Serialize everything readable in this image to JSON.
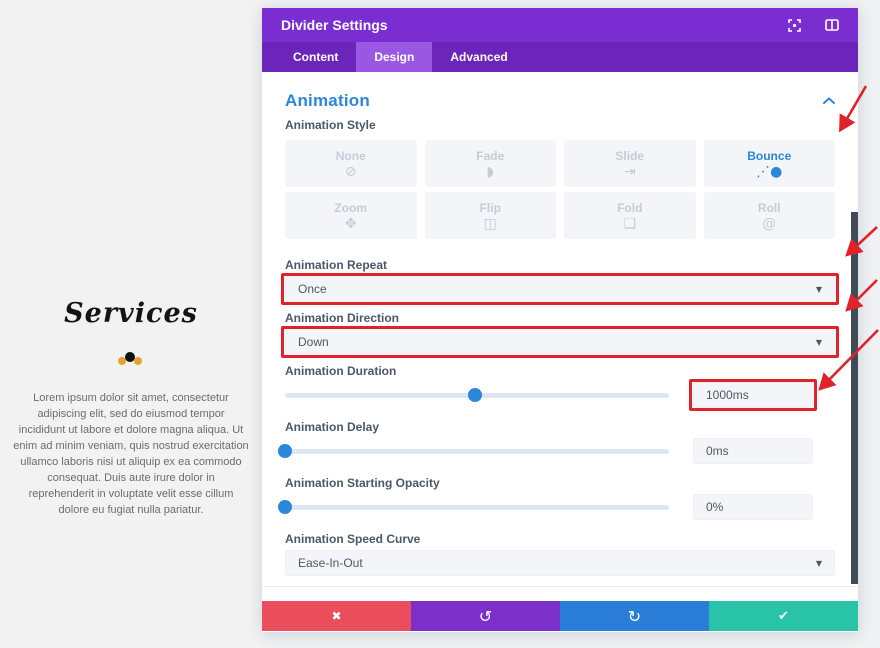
{
  "colors": {
    "header_purple": "#7a2dd1",
    "tabbar_purple": "#6c25ba",
    "active_tab_purple": "#9a58e2",
    "accent_blue": "#2b87da",
    "annotation_red": "#e0222a",
    "button_red": "#ea4d5c",
    "button_purple": "#7d2fc9",
    "button_blue": "#2b7ed8",
    "button_green": "#29c3a8"
  },
  "left_panel": {
    "heading": "Services",
    "paragraph": "Lorem ipsum dolor sit amet, consectetur adipiscing elit, sed do eiusmod tempor incididunt ut labore et dolore magna aliqua. Ut enim ad minim veniam, quis nostrud exercitation ullamco laboris nisi ut aliquip ex ea commodo consequat. Duis aute irure dolor in reprehenderit in voluptate velit esse cillum dolore eu fugiat nulla pariatur."
  },
  "modal": {
    "title": "Divider Settings",
    "tabs": [
      {
        "label": "Content"
      },
      {
        "label": "Design"
      },
      {
        "label": "Advanced"
      }
    ],
    "section_title": "Animation",
    "animation_style": {
      "label": "Animation Style",
      "selected": "Bounce",
      "options": [
        {
          "label": "None",
          "glyph": "⊘"
        },
        {
          "label": "Fade",
          "glyph": "◗"
        },
        {
          "label": "Slide",
          "glyph": "⇥"
        },
        {
          "label": "Bounce",
          "glyph": "⋰●"
        },
        {
          "label": "Zoom",
          "glyph": "✥"
        },
        {
          "label": "Flip",
          "glyph": "◫"
        },
        {
          "label": "Fold",
          "glyph": "❏"
        },
        {
          "label": "Roll",
          "glyph": "@"
        }
      ]
    },
    "fields": {
      "animation_repeat": {
        "label": "Animation Repeat",
        "value": "Once"
      },
      "animation_direction": {
        "label": "Animation Direction",
        "value": "Down"
      },
      "animation_duration": {
        "label": "Animation Duration",
        "value": "1000ms",
        "slider_percent": 49.5
      },
      "animation_delay": {
        "label": "Animation Delay",
        "value": "0ms",
        "slider_percent": 0
      },
      "animation_starting_opacity": {
        "label": "Animation Starting Opacity",
        "value": "0%",
        "slider_percent": 0
      },
      "animation_speed_curve": {
        "label": "Animation Speed Curve",
        "value": "Ease-In-Out"
      }
    },
    "icons": {
      "caret": "▼",
      "cancel": "✖",
      "undo": "↺",
      "redo": "↻",
      "save": "✔"
    }
  }
}
